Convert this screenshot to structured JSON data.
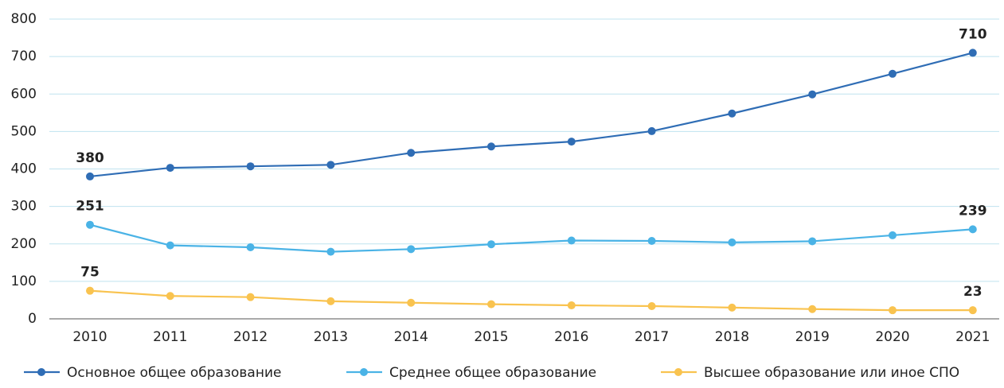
{
  "chart_data": {
    "type": "line",
    "categories": [
      "2010",
      "2011",
      "2012",
      "2013",
      "2014",
      "2015",
      "2016",
      "2017",
      "2018",
      "2019",
      "2020",
      "2021"
    ],
    "series": [
      {
        "name": "Основное общее образование",
        "color": "#2f6db5",
        "values": [
          380,
          403,
          407,
          411,
          443,
          460,
          473,
          501,
          548,
          599,
          654,
          710
        ]
      },
      {
        "name": "Среднее общее образование",
        "color": "#4ab3e6",
        "values": [
          251,
          196,
          191,
          179,
          186,
          199,
          209,
          208,
          204,
          207,
          223,
          239
        ]
      },
      {
        "name": "Высшее образование или иное СПО",
        "color": "#f9c34f",
        "values": [
          75,
          61,
          58,
          47,
          43,
          39,
          36,
          34,
          30,
          26,
          23,
          23
        ]
      }
    ],
    "ylim": [
      0,
      800
    ],
    "yticks": [
      0,
      100,
      200,
      300,
      400,
      500,
      600,
      700,
      800
    ],
    "grid": true,
    "legend": "bottom"
  }
}
